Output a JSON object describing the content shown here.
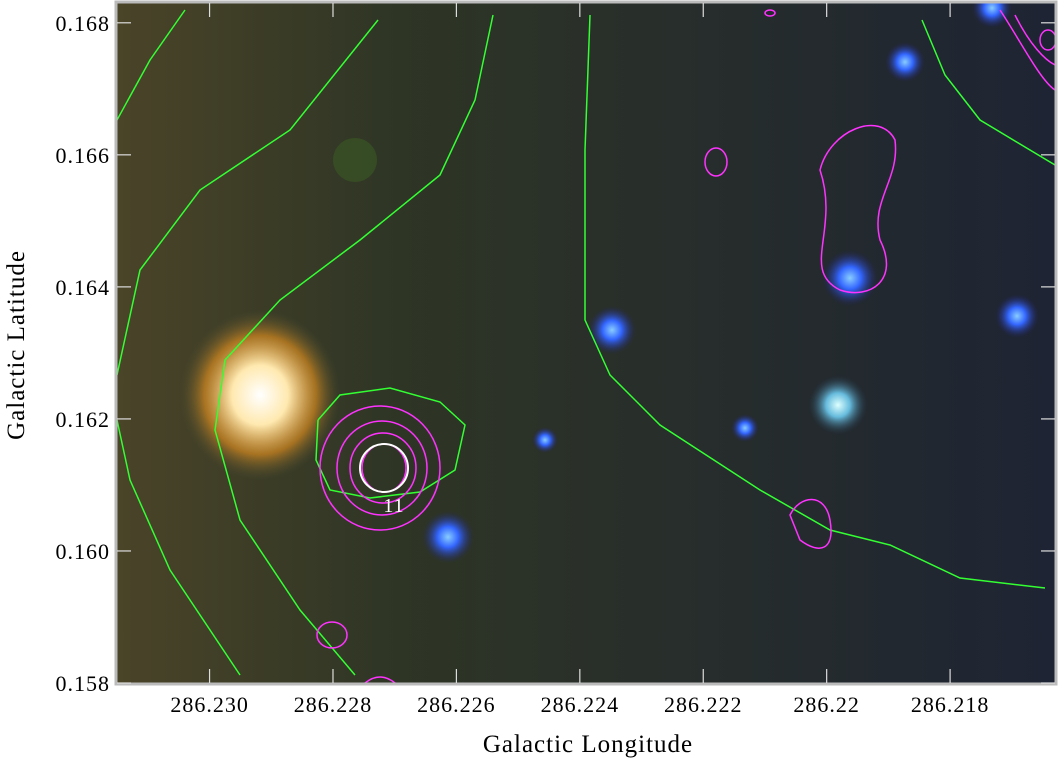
{
  "chart_data": {
    "type": "image",
    "x_label": "Galactic Longitude",
    "y_label": "Galactic Latitude",
    "xlim": [
      286.2315,
      286.2163
    ],
    "ylim": [
      0.158,
      0.1683
    ],
    "xticks": [
      {
        "value": 286.23,
        "label": "286.230"
      },
      286.228,
      286.226,
      286.224,
      286.222,
      286.22,
      286.218
    ],
    "yticks": [
      0.158,
      {
        "value": 0.16,
        "label": "0.160"
      },
      0.162,
      0.164,
      0.166,
      0.168
    ],
    "annotations": [
      "11"
    ]
  }
}
